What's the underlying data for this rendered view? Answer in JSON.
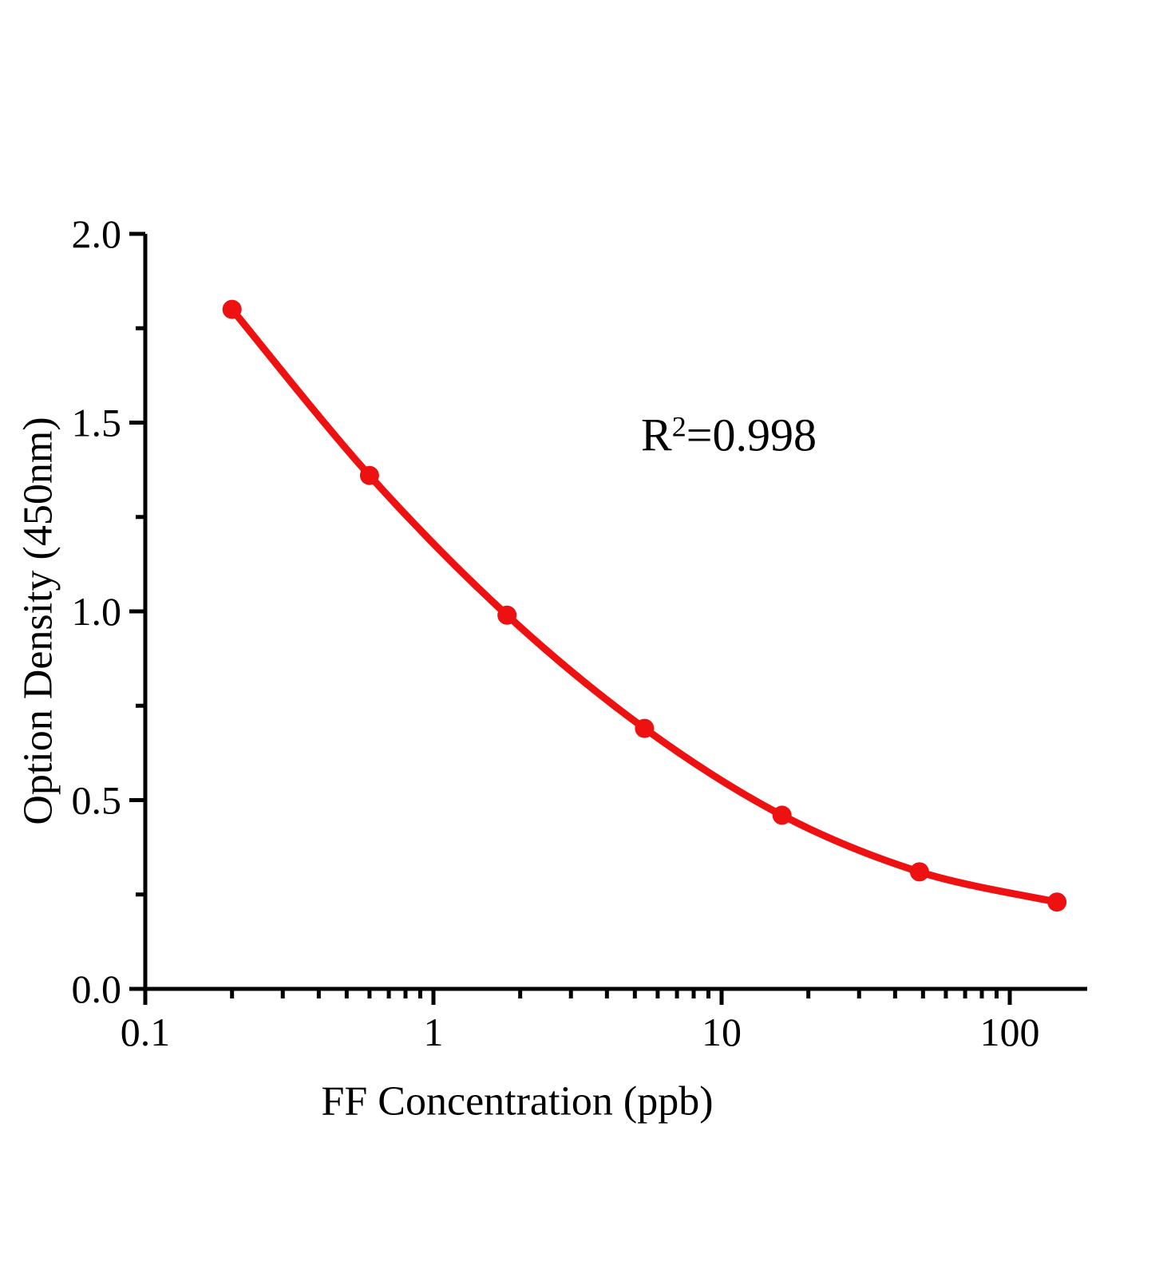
{
  "chart_data": {
    "type": "line",
    "title": "",
    "xlabel": "FF Concentration (ppb)",
    "ylabel": "Option Density (450nm)",
    "annotation": {
      "base": "R",
      "sup": "2",
      "rest": "=0.998",
      "full_text": "R2=0.998"
    },
    "x_scale": "log",
    "x": [
      0.2,
      0.6,
      1.8,
      5.4,
      16.2,
      48.6,
      145.8
    ],
    "y": [
      1.8,
      1.36,
      0.99,
      0.69,
      0.46,
      0.31,
      0.23
    ],
    "x_tick_values": [
      0.1,
      1,
      10,
      100
    ],
    "x_tick_labels": [
      "0.1",
      "1",
      "10",
      "100"
    ],
    "y_tick_values": [
      0.0,
      0.5,
      1.0,
      1.5,
      2.0
    ],
    "y_tick_labels": [
      "0.0",
      "0.5",
      "1.0",
      "1.5",
      "2.0"
    ],
    "y_minor_ticks": [
      0.25,
      0.75,
      1.25,
      1.75
    ],
    "xlim": [
      0.1,
      186
    ],
    "ylim": [
      0.0,
      2.0
    ],
    "grid": false,
    "legend": "none",
    "marker": "circle",
    "colors": {
      "series": "#ed1111",
      "axis": "#000000",
      "text": "#000000",
      "background": "#ffffff"
    }
  }
}
